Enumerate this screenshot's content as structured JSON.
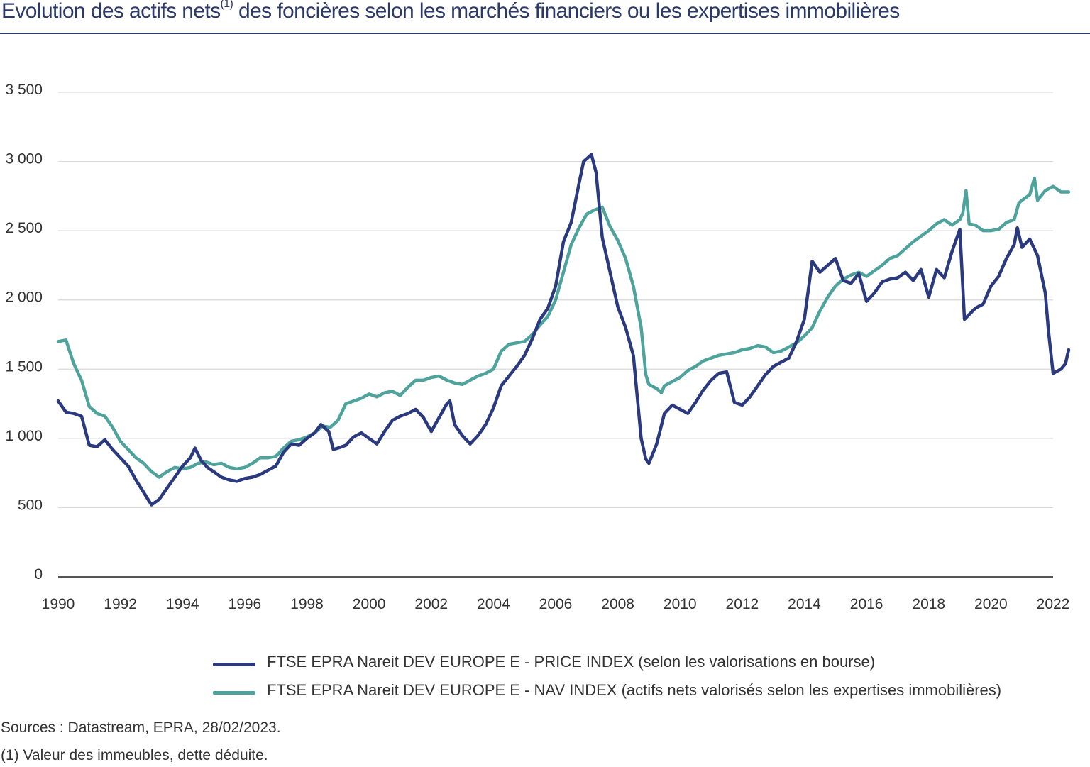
{
  "title_main": "Evolution des actifs nets",
  "title_sup": "(1)",
  "title_rest": " des foncières selon les marchés financiers ou les expertises immobilières",
  "sources": "Sources : Datastream, EPRA, 28/02/2023.",
  "footnote": "(1) Valeur des immeubles, dette déduite.",
  "chart_data": {
    "type": "line",
    "xlim": [
      1990,
      2022
    ],
    "ylim": [
      0,
      3500
    ],
    "grid": true,
    "legend_position": "bottom",
    "y_ticks": [
      {
        "value": 0,
        "label": "0"
      },
      {
        "value": 500,
        "label": "500"
      },
      {
        "value": 1000,
        "label": "1 000"
      },
      {
        "value": 1500,
        "label": "1 500"
      },
      {
        "value": 2000,
        "label": "2 000"
      },
      {
        "value": 2500,
        "label": "2 500"
      },
      {
        "value": 3000,
        "label": "3 000"
      },
      {
        "value": 3500,
        "label": "3 500"
      }
    ],
    "x_ticks": [
      {
        "value": 1990,
        "label": "1990"
      },
      {
        "value": 1992,
        "label": "1992"
      },
      {
        "value": 1994,
        "label": "1994"
      },
      {
        "value": 1996,
        "label": "1996"
      },
      {
        "value": 1998,
        "label": "1998"
      },
      {
        "value": 2000,
        "label": "2000"
      },
      {
        "value": 2002,
        "label": "2002"
      },
      {
        "value": 2004,
        "label": "2004"
      },
      {
        "value": 2006,
        "label": "2006"
      },
      {
        "value": 2008,
        "label": "2008"
      },
      {
        "value": 2010,
        "label": "2010"
      },
      {
        "value": 2012,
        "label": "2012"
      },
      {
        "value": 2014,
        "label": "2014"
      },
      {
        "value": 2016,
        "label": "2016"
      },
      {
        "value": 2018,
        "label": "2018"
      },
      {
        "value": 2020,
        "label": "2020"
      },
      {
        "value": 2022,
        "label": "2022"
      }
    ],
    "series": [
      {
        "name": "FTSE EPRA Nareit DEV EUROPE E - PRICE INDEX (selon les valorisations en bourse)",
        "color": "#2b3a7e",
        "points": [
          [
            1990,
            1270
          ],
          [
            1990.25,
            1190
          ],
          [
            1990.5,
            1180
          ],
          [
            1990.75,
            1160
          ],
          [
            1991,
            950
          ],
          [
            1991.25,
            940
          ],
          [
            1991.5,
            990
          ],
          [
            1991.75,
            920
          ],
          [
            1992,
            860
          ],
          [
            1992.25,
            800
          ],
          [
            1992.5,
            700
          ],
          [
            1992.75,
            610
          ],
          [
            1993,
            520
          ],
          [
            1993.25,
            560
          ],
          [
            1993.5,
            640
          ],
          [
            1993.75,
            720
          ],
          [
            1994,
            800
          ],
          [
            1994.25,
            860
          ],
          [
            1994.4,
            930
          ],
          [
            1994.6,
            840
          ],
          [
            1994.8,
            790
          ],
          [
            1995,
            760
          ],
          [
            1995.25,
            720
          ],
          [
            1995.5,
            700
          ],
          [
            1995.75,
            690
          ],
          [
            1996,
            710
          ],
          [
            1996.25,
            720
          ],
          [
            1996.5,
            740
          ],
          [
            1996.75,
            770
          ],
          [
            1997,
            800
          ],
          [
            1997.25,
            900
          ],
          [
            1997.5,
            960
          ],
          [
            1997.75,
            950
          ],
          [
            1998,
            1000
          ],
          [
            1998.25,
            1040
          ],
          [
            1998.45,
            1100
          ],
          [
            1998.7,
            1050
          ],
          [
            1998.85,
            920
          ],
          [
            1999,
            930
          ],
          [
            1999.25,
            950
          ],
          [
            1999.5,
            1010
          ],
          [
            1999.75,
            1040
          ],
          [
            2000,
            1000
          ],
          [
            2000.25,
            960
          ],
          [
            2000.5,
            1050
          ],
          [
            2000.75,
            1130
          ],
          [
            2001,
            1160
          ],
          [
            2001.25,
            1180
          ],
          [
            2001.5,
            1210
          ],
          [
            2001.75,
            1150
          ],
          [
            2002,
            1050
          ],
          [
            2002.25,
            1150
          ],
          [
            2002.5,
            1250
          ],
          [
            2002.6,
            1270
          ],
          [
            2002.75,
            1100
          ],
          [
            2003,
            1020
          ],
          [
            2003.25,
            960
          ],
          [
            2003.5,
            1020
          ],
          [
            2003.75,
            1100
          ],
          [
            2004,
            1220
          ],
          [
            2004.25,
            1380
          ],
          [
            2004.5,
            1450
          ],
          [
            2004.75,
            1520
          ],
          [
            2005,
            1600
          ],
          [
            2005.25,
            1720
          ],
          [
            2005.5,
            1860
          ],
          [
            2005.75,
            1940
          ],
          [
            2006,
            2100
          ],
          [
            2006.25,
            2420
          ],
          [
            2006.5,
            2560
          ],
          [
            2006.75,
            2840
          ],
          [
            2006.9,
            3000
          ],
          [
            2007.15,
            3050
          ],
          [
            2007.3,
            2920
          ],
          [
            2007.5,
            2450
          ],
          [
            2007.75,
            2200
          ],
          [
            2008,
            1950
          ],
          [
            2008.25,
            1800
          ],
          [
            2008.5,
            1600
          ],
          [
            2008.75,
            1000
          ],
          [
            2008.9,
            850
          ],
          [
            2009,
            820
          ],
          [
            2009.25,
            960
          ],
          [
            2009.5,
            1180
          ],
          [
            2009.75,
            1240
          ],
          [
            2010,
            1210
          ],
          [
            2010.25,
            1180
          ],
          [
            2010.5,
            1260
          ],
          [
            2010.75,
            1350
          ],
          [
            2011,
            1420
          ],
          [
            2011.25,
            1470
          ],
          [
            2011.5,
            1480
          ],
          [
            2011.75,
            1260
          ],
          [
            2012,
            1240
          ],
          [
            2012.25,
            1300
          ],
          [
            2012.5,
            1380
          ],
          [
            2012.75,
            1460
          ],
          [
            2013,
            1520
          ],
          [
            2013.25,
            1550
          ],
          [
            2013.5,
            1580
          ],
          [
            2013.75,
            1700
          ],
          [
            2014,
            1860
          ],
          [
            2014.25,
            2280
          ],
          [
            2014.5,
            2200
          ],
          [
            2014.75,
            2250
          ],
          [
            2015,
            2300
          ],
          [
            2015.25,
            2140
          ],
          [
            2015.5,
            2120
          ],
          [
            2015.75,
            2190
          ],
          [
            2016,
            1990
          ],
          [
            2016.25,
            2050
          ],
          [
            2016.5,
            2130
          ],
          [
            2016.75,
            2150
          ],
          [
            2017,
            2160
          ],
          [
            2017.25,
            2200
          ],
          [
            2017.5,
            2140
          ],
          [
            2017.75,
            2220
          ],
          [
            2018,
            2020
          ],
          [
            2018.25,
            2220
          ],
          [
            2018.5,
            2160
          ],
          [
            2018.75,
            2350
          ],
          [
            2019,
            2510
          ],
          [
            2019.15,
            1860
          ],
          [
            2019.5,
            1940
          ],
          [
            2019.75,
            1970
          ],
          [
            2020,
            2100
          ],
          [
            2020.25,
            2170
          ],
          [
            2020.5,
            2300
          ],
          [
            2020.75,
            2400
          ],
          [
            2020.85,
            2520
          ],
          [
            2021,
            2380
          ],
          [
            2021.25,
            2440
          ],
          [
            2021.5,
            2320
          ],
          [
            2021.75,
            2050
          ],
          [
            2021.85,
            1780
          ],
          [
            2022,
            1470
          ],
          [
            2022.25,
            1500
          ],
          [
            2022.4,
            1540
          ],
          [
            2022.5,
            1640
          ]
        ]
      },
      {
        "name": "FTSE EPRA Nareit DEV EUROPE E - NAV INDEX  (actifs nets valorisés selon les expertises immobilières)",
        "color": "#4ea39d",
        "points": [
          [
            1990,
            1700
          ],
          [
            1990.25,
            1710
          ],
          [
            1990.5,
            1540
          ],
          [
            1990.75,
            1420
          ],
          [
            1991,
            1230
          ],
          [
            1991.25,
            1180
          ],
          [
            1991.5,
            1160
          ],
          [
            1991.75,
            1080
          ],
          [
            1992,
            980
          ],
          [
            1992.25,
            920
          ],
          [
            1992.5,
            860
          ],
          [
            1992.75,
            820
          ],
          [
            1993,
            760
          ],
          [
            1993.25,
            720
          ],
          [
            1993.5,
            760
          ],
          [
            1993.75,
            790
          ],
          [
            1994,
            780
          ],
          [
            1994.25,
            790
          ],
          [
            1994.5,
            820
          ],
          [
            1994.75,
            830
          ],
          [
            1995,
            810
          ],
          [
            1995.25,
            820
          ],
          [
            1995.5,
            790
          ],
          [
            1995.75,
            780
          ],
          [
            1996,
            790
          ],
          [
            1996.25,
            820
          ],
          [
            1996.5,
            860
          ],
          [
            1996.75,
            860
          ],
          [
            1997,
            870
          ],
          [
            1997.25,
            930
          ],
          [
            1997.5,
            980
          ],
          [
            1997.75,
            990
          ],
          [
            1998,
            1010
          ],
          [
            1998.25,
            1040
          ],
          [
            1998.5,
            1090
          ],
          [
            1998.75,
            1080
          ],
          [
            1999,
            1130
          ],
          [
            1999.25,
            1250
          ],
          [
            1999.5,
            1270
          ],
          [
            1999.75,
            1290
          ],
          [
            2000,
            1320
          ],
          [
            2000.25,
            1300
          ],
          [
            2000.5,
            1330
          ],
          [
            2000.75,
            1340
          ],
          [
            2001,
            1310
          ],
          [
            2001.25,
            1370
          ],
          [
            2001.5,
            1420
          ],
          [
            2001.75,
            1420
          ],
          [
            2002,
            1440
          ],
          [
            2002.25,
            1450
          ],
          [
            2002.5,
            1420
          ],
          [
            2002.75,
            1400
          ],
          [
            2003,
            1390
          ],
          [
            2003.25,
            1420
          ],
          [
            2003.5,
            1450
          ],
          [
            2003.75,
            1470
          ],
          [
            2004,
            1500
          ],
          [
            2004.25,
            1630
          ],
          [
            2004.5,
            1680
          ],
          [
            2004.75,
            1690
          ],
          [
            2005,
            1700
          ],
          [
            2005.25,
            1750
          ],
          [
            2005.5,
            1820
          ],
          [
            2005.75,
            1880
          ],
          [
            2006,
            2000
          ],
          [
            2006.25,
            2200
          ],
          [
            2006.5,
            2400
          ],
          [
            2006.75,
            2520
          ],
          [
            2007,
            2620
          ],
          [
            2007.25,
            2650
          ],
          [
            2007.5,
            2670
          ],
          [
            2007.75,
            2530
          ],
          [
            2008,
            2430
          ],
          [
            2008.25,
            2300
          ],
          [
            2008.5,
            2100
          ],
          [
            2008.75,
            1800
          ],
          [
            2008.9,
            1460
          ],
          [
            2009,
            1390
          ],
          [
            2009.25,
            1360
          ],
          [
            2009.4,
            1330
          ],
          [
            2009.5,
            1380
          ],
          [
            2009.75,
            1410
          ],
          [
            2010,
            1440
          ],
          [
            2010.25,
            1490
          ],
          [
            2010.5,
            1520
          ],
          [
            2010.75,
            1560
          ],
          [
            2011,
            1580
          ],
          [
            2011.25,
            1600
          ],
          [
            2011.5,
            1610
          ],
          [
            2011.75,
            1620
          ],
          [
            2012,
            1640
          ],
          [
            2012.25,
            1650
          ],
          [
            2012.5,
            1670
          ],
          [
            2012.75,
            1660
          ],
          [
            2013,
            1620
          ],
          [
            2013.25,
            1630
          ],
          [
            2013.5,
            1660
          ],
          [
            2013.75,
            1690
          ],
          [
            2014,
            1740
          ],
          [
            2014.25,
            1800
          ],
          [
            2014.5,
            1920
          ],
          [
            2014.75,
            2020
          ],
          [
            2015,
            2100
          ],
          [
            2015.25,
            2150
          ],
          [
            2015.5,
            2180
          ],
          [
            2015.75,
            2200
          ],
          [
            2016,
            2170
          ],
          [
            2016.25,
            2210
          ],
          [
            2016.5,
            2250
          ],
          [
            2016.75,
            2300
          ],
          [
            2017,
            2320
          ],
          [
            2017.25,
            2370
          ],
          [
            2017.5,
            2420
          ],
          [
            2017.75,
            2460
          ],
          [
            2018,
            2500
          ],
          [
            2018.25,
            2550
          ],
          [
            2018.5,
            2580
          ],
          [
            2018.75,
            2540
          ],
          [
            2019,
            2580
          ],
          [
            2019.1,
            2630
          ],
          [
            2019.2,
            2790
          ],
          [
            2019.3,
            2550
          ],
          [
            2019.5,
            2540
          ],
          [
            2019.75,
            2500
          ],
          [
            2020,
            2500
          ],
          [
            2020.25,
            2510
          ],
          [
            2020.5,
            2560
          ],
          [
            2020.75,
            2580
          ],
          [
            2020.9,
            2700
          ],
          [
            2021,
            2720
          ],
          [
            2021.25,
            2760
          ],
          [
            2021.4,
            2880
          ],
          [
            2021.5,
            2720
          ],
          [
            2021.75,
            2790
          ],
          [
            2022,
            2820
          ],
          [
            2022.25,
            2780
          ],
          [
            2022.5,
            2780
          ]
        ]
      }
    ]
  }
}
